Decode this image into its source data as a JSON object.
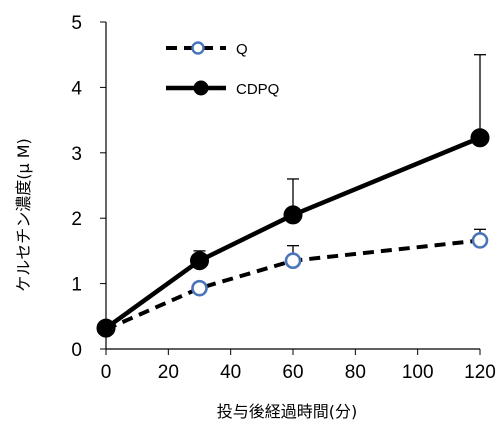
{
  "chart_data": {
    "type": "line",
    "xlabel": "投与後経過時間(分)",
    "ylabel": "ケルセチン濃度(μ M)",
    "x": [
      0,
      30,
      60,
      120
    ],
    "xlim": [
      0,
      120
    ],
    "ylim": [
      0,
      5
    ],
    "xticks": [
      "0",
      "20",
      "40",
      "60",
      "80",
      "100",
      "120"
    ],
    "yticks": [
      "0",
      "1",
      "2",
      "3",
      "4",
      "5"
    ],
    "grid": false,
    "legend": "top-left",
    "series": [
      {
        "name": "Q",
        "values": [
          0.3,
          0.93,
          1.35,
          1.66
        ],
        "error_upper": [
          0.0,
          0.0,
          0.23,
          0.17
        ],
        "line_style": "dashed",
        "marker": "open-circle",
        "marker_color": "#4a76b8"
      },
      {
        "name": "CDPQ",
        "values": [
          0.32,
          1.35,
          2.05,
          3.23
        ],
        "error_upper": [
          0.0,
          0.15,
          0.55,
          1.27
        ],
        "line_style": "solid",
        "marker": "filled-circle",
        "marker_color": "#000000"
      }
    ]
  }
}
